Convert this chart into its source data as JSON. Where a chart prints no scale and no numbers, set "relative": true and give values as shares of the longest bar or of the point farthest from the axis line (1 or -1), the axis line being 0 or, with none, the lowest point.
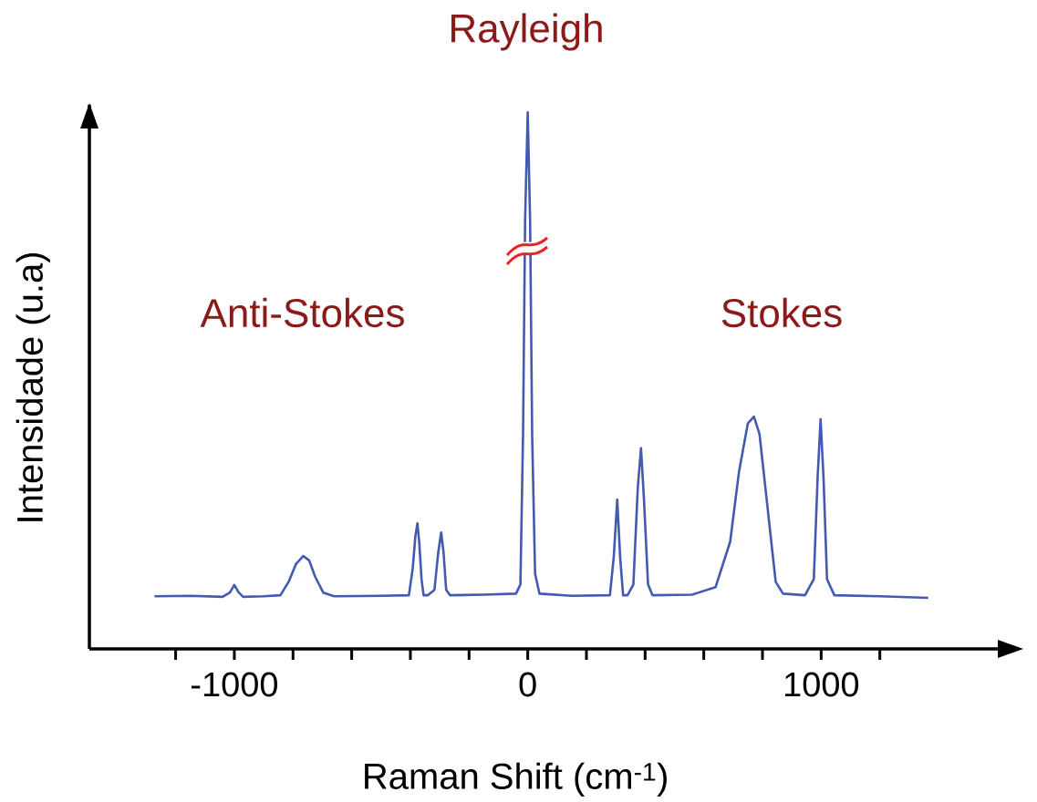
{
  "chart_data": {
    "type": "line",
    "relative": true,
    "xlabel": "Raman Shift (cm$^{-1}$)",
    "ylabel": "Intensidade (u.a)",
    "annotations": [
      "Rayleigh",
      "Anti-Stokes",
      "Stokes"
    ],
    "xlim": [
      -1494,
      1602
    ],
    "xticks": [
      {
        "value": -1200,
        "label": null
      },
      -1000,
      {
        "value": -800,
        "label": null
      },
      {
        "value": -600,
        "label": null
      },
      {
        "value": -400,
        "label": null
      },
      {
        "value": -200,
        "label": null
      },
      0,
      {
        "value": 200,
        "label": null
      },
      {
        "value": 400,
        "label": null
      },
      {
        "value": 600,
        "label": null
      },
      {
        "value": 800,
        "label": null
      },
      1000,
      {
        "value": 1200,
        "label": null
      }
    ],
    "x": [
      -1272,
      -1150,
      -1040,
      -1015,
      -1000,
      -985,
      -970,
      -900,
      -843,
      -815,
      -790,
      -765,
      -745,
      -725,
      -697,
      -660,
      -500,
      -405,
      -392,
      -383,
      -376,
      -370,
      -362,
      -355,
      -340,
      -318,
      -305,
      -295,
      -287,
      -278,
      -265,
      -150,
      -40,
      -25,
      -16,
      -9,
      0,
      8,
      15,
      25,
      40,
      150,
      280,
      293,
      305,
      315,
      325,
      340,
      360,
      375,
      386,
      396,
      410,
      425,
      560,
      640,
      690,
      720,
      750,
      771,
      790,
      820,
      845,
      870,
      945,
      975,
      988,
      998,
      1008,
      1020,
      1045,
      1200,
      1365
    ],
    "series": [
      {
        "color": "#4459b0",
        "values": [
          0.098,
          0.099,
          0.097,
          0.105,
          0.119,
          0.105,
          0.097,
          0.098,
          0.1,
          0.125,
          0.158,
          0.173,
          0.165,
          0.135,
          0.105,
          0.098,
          0.099,
          0.1,
          0.15,
          0.21,
          0.234,
          0.2,
          0.13,
          0.1,
          0.1,
          0.11,
          0.18,
          0.217,
          0.18,
          0.11,
          0.1,
          0.101,
          0.103,
          0.12,
          0.4,
          0.8,
          1.0,
          0.8,
          0.4,
          0.14,
          0.103,
          0.099,
          0.1,
          0.17,
          0.278,
          0.17,
          0.1,
          0.1,
          0.12,
          0.3,
          0.374,
          0.28,
          0.12,
          0.1,
          0.101,
          0.115,
          0.2,
          0.33,
          0.42,
          0.433,
          0.4,
          0.25,
          0.125,
          0.103,
          0.1,
          0.13,
          0.32,
          0.428,
          0.32,
          0.13,
          0.1,
          0.098,
          0.095
        ]
      }
    ]
  }
}
